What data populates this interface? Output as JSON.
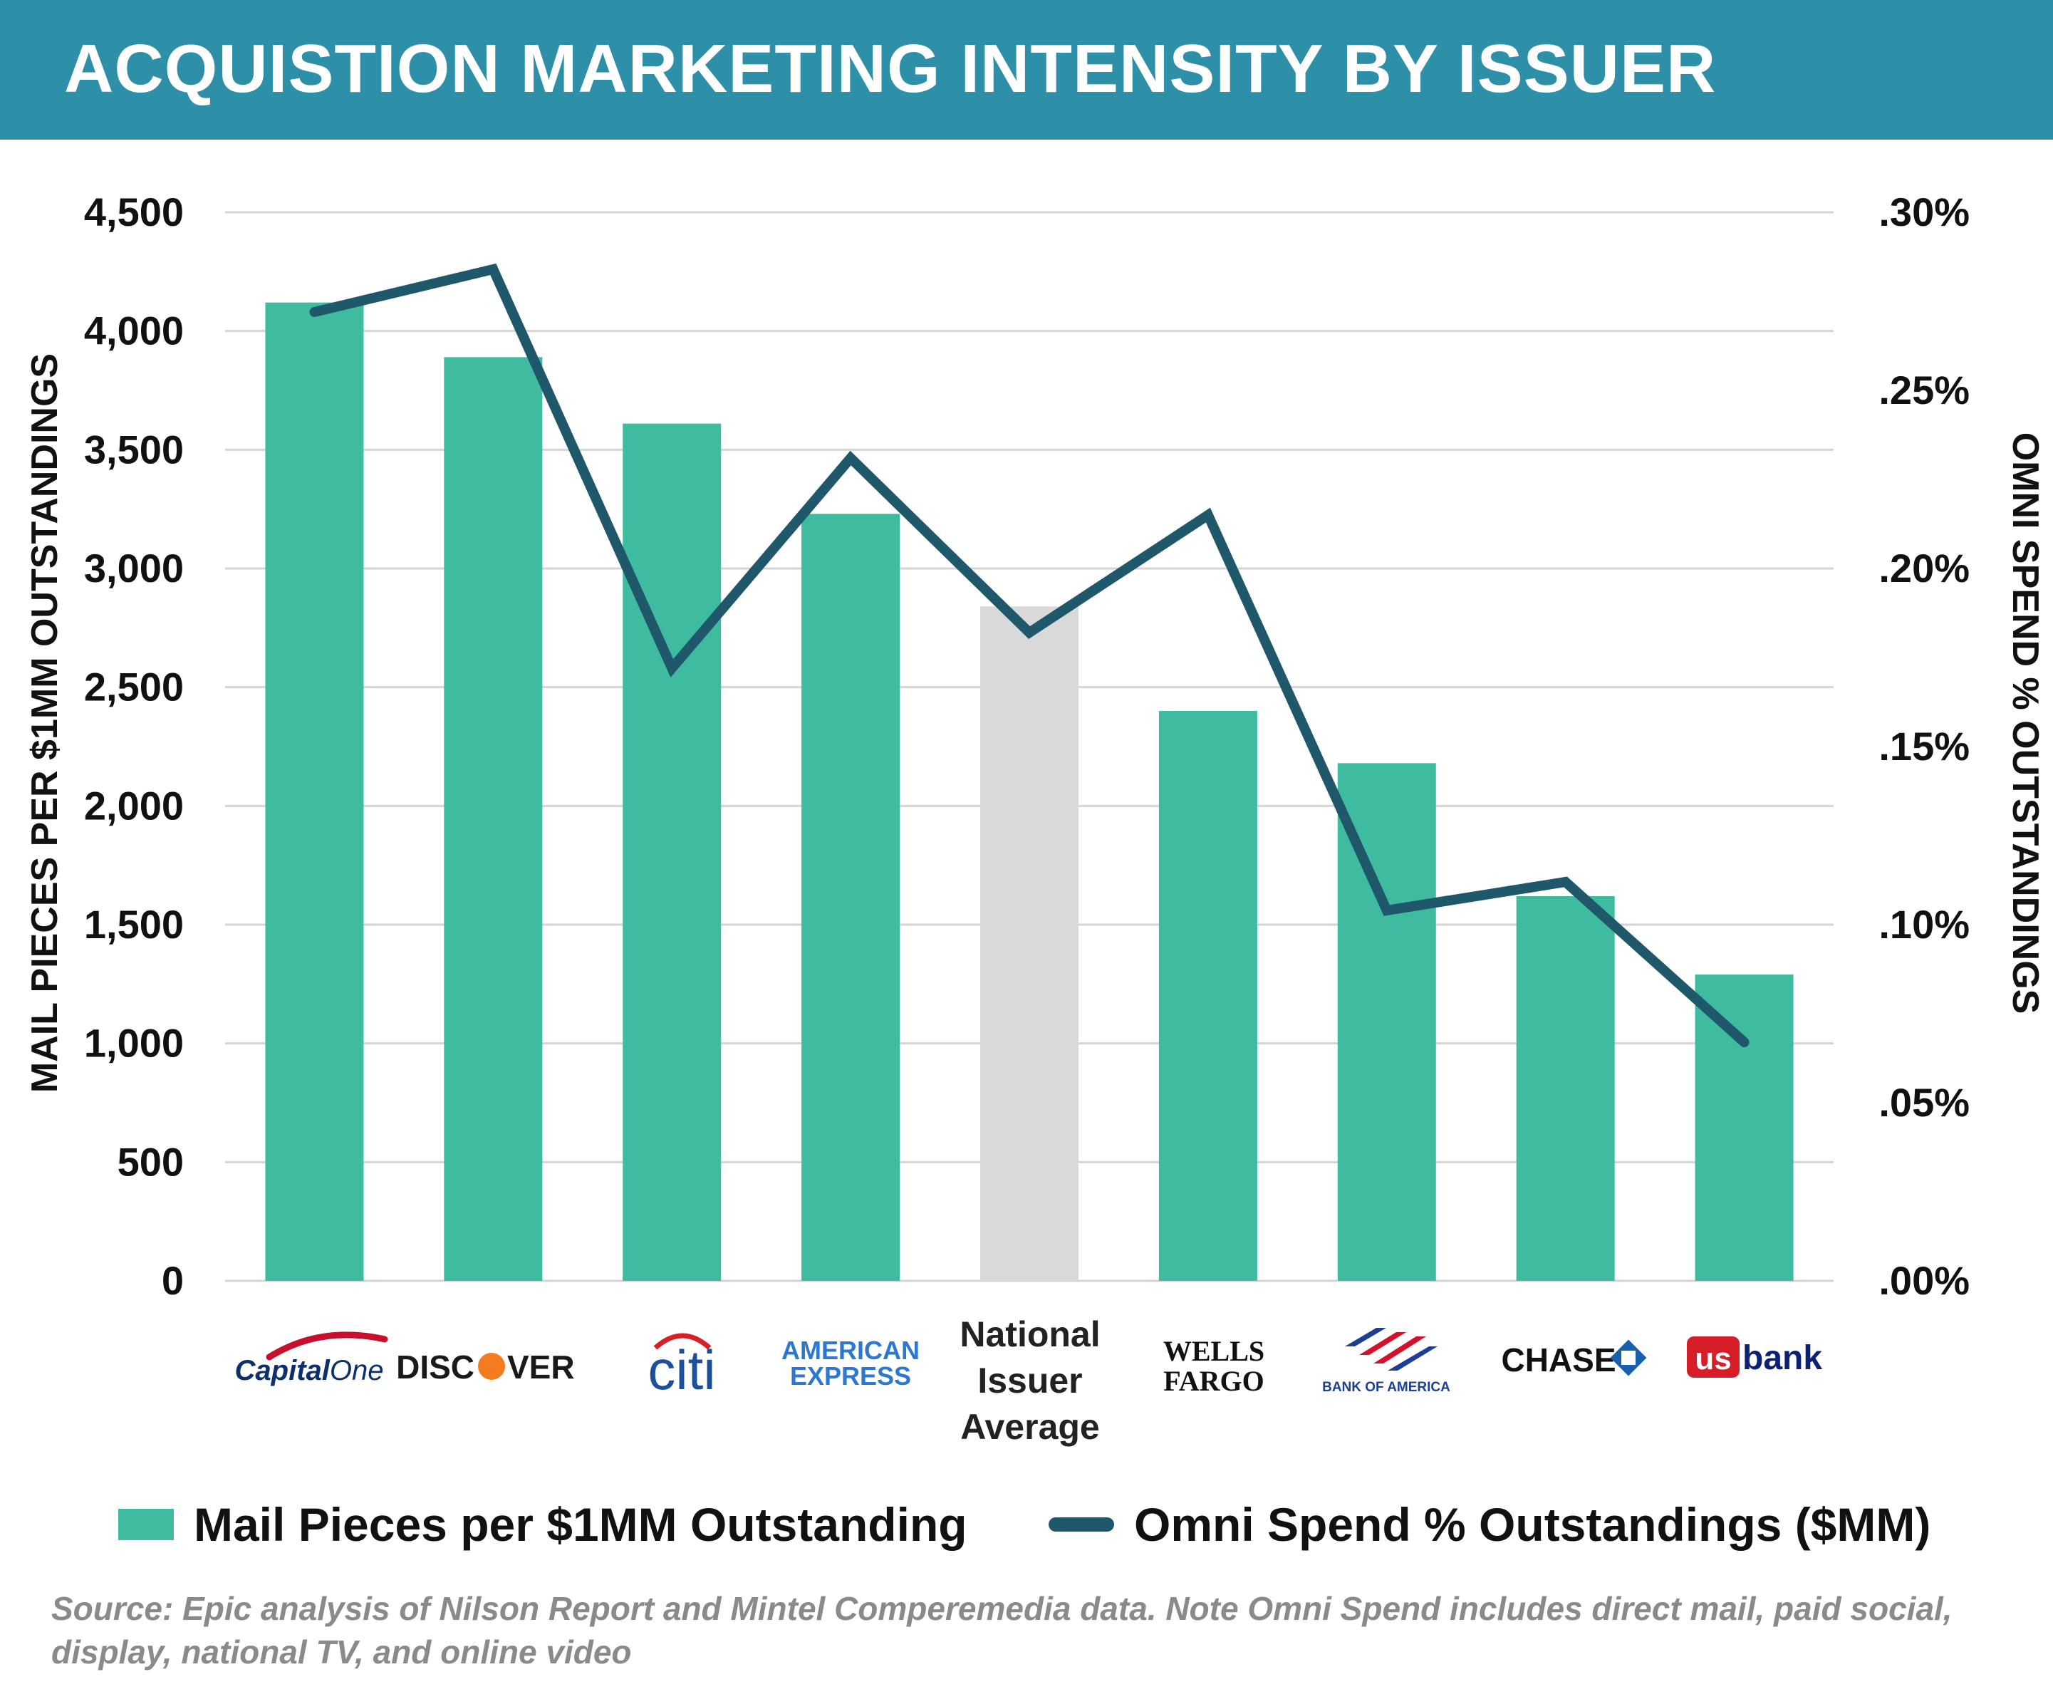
{
  "title": "ACQUISTION MARKETING INTENSITY BY ISSUER",
  "chart_data": {
    "type": "bar",
    "categories": [
      "Capital One",
      "DISCOVER",
      "citi",
      "AMERICAN EXPRESS",
      "National Issuer Average",
      "WELLS FARGO",
      "BANK OF AMERICA",
      "CHASE",
      "us bank"
    ],
    "series": [
      {
        "name": "Mail Pieces per $1MM Outstanding",
        "type": "bar",
        "axis": "left",
        "values": [
          4120,
          3890,
          3610,
          3230,
          2840,
          2400,
          2180,
          1620,
          1290
        ]
      },
      {
        "name": "Omni Spend % Outstandings ($MM)",
        "type": "line",
        "axis": "right",
        "values": [
          0.272,
          0.284,
          0.172,
          0.231,
          0.182,
          0.215,
          0.104,
          0.112,
          0.067
        ]
      }
    ],
    "highlight_category": "National Issuer Average",
    "ylabel": "MAIL PIECES PER $1MM OUTSTANDINGS",
    "y2label": "OMNI SPEND % OUTSTANDINGS",
    "ylim": [
      0,
      4500
    ],
    "y2lim": [
      0,
      0.3
    ],
    "yticks": [
      "0",
      "500",
      "1,000",
      "1,500",
      "2,000",
      "2,500",
      "3,000",
      "3,500",
      "4,000",
      "4,500"
    ],
    "y2ticks": [
      ".00%",
      ".05%",
      ".10%",
      ".15%",
      ".20%",
      ".25%",
      ".30%"
    ],
    "category_labels": {
      "capital_one": {
        "a": "Capital",
        "b": "One"
      },
      "discover": {
        "a": "DISC",
        "b": "VER"
      },
      "citi": "citi",
      "amex": {
        "line1": "AMERICAN",
        "line2": "EXPRESS"
      },
      "national": [
        "National",
        "Issuer",
        "Average"
      ],
      "wells": {
        "line1": "WELLS",
        "line2": "FARGO"
      },
      "boa": "BANK OF AMERICA",
      "chase": "CHASE",
      "usbank": {
        "us": "us",
        "bank": "bank"
      }
    },
    "legend_position": "bottom",
    "grid": true
  },
  "legend": {
    "bar_label": "Mail Pieces per $1MM Outstanding",
    "line_label": "Omni Spend % Outstandings ($MM)"
  },
  "colors": {
    "header": "#2e8fa8",
    "bar": "#3fbba0",
    "bar_highlight": "#d9d9d9",
    "line": "#1f576b",
    "grid": "#d4d4d4"
  },
  "source": "Source: Epic analysis of Nilson Report and Mintel Comperemedia data. Note Omni Spend includes direct mail, paid social, display, national TV, and online video"
}
